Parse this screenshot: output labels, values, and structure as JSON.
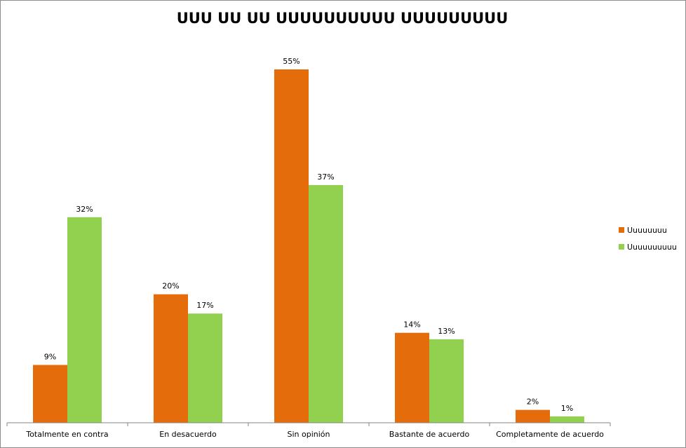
{
  "chart_data": {
    "type": "bar",
    "title": "UUU UU UU UUUUUUUUUU UUUUUUUUU",
    "xlabel": "",
    "ylabel": "",
    "ylim": [
      0,
      60
    ],
    "grid": false,
    "legend_position": "right",
    "categories": [
      "Totalmente en contra",
      "En desacuerdo",
      "Sin opinión",
      "Bastante de acuerdo",
      "Completamente de acuerdo"
    ],
    "series": [
      {
        "name": "Uuuuuuuu",
        "color": "#E46C0A",
        "values": [
          9,
          20,
          55,
          14,
          2
        ],
        "labels": [
          "9%",
          "20%",
          "55%",
          "14%",
          "2%"
        ]
      },
      {
        "name": "Uuuuuuuuuu",
        "color": "#92D050",
        "values": [
          32,
          17,
          37,
          13,
          1
        ],
        "labels": [
          "32%",
          "17%",
          "37%",
          "13%",
          "1%"
        ]
      }
    ]
  }
}
